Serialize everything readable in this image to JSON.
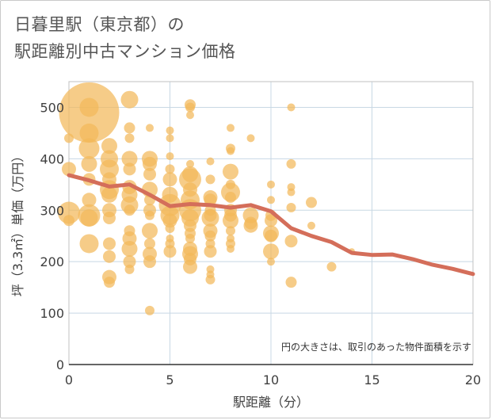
{
  "header": {
    "title_line1": "日暮里駅（東京都）の",
    "title_line2": "駅距離別中古マンション価格"
  },
  "colors": {
    "bubble": "#f2b85a",
    "trend": "#d46e5a",
    "grid": "#c8d8e4",
    "plot_border": "#c0c0c0",
    "axis_line": "#333333"
  },
  "chart_data": {
    "type": "scatter",
    "xlabel": "駅距離（分）",
    "ylabel": "坪（3.3㎡）単価（万円）",
    "annotation": "円の大きさは、取引のあった物件面積を示す",
    "xlim": [
      0,
      20
    ],
    "ylim": [
      0,
      550
    ],
    "xticks": [
      0,
      5,
      10,
      15,
      20
    ],
    "yticks": [
      0,
      100,
      200,
      300,
      400,
      500
    ],
    "grid": true,
    "series": [
      {
        "kind": "bubbles",
        "points": [
          [
            1,
            490,
            38
          ],
          [
            0,
            295,
            14
          ],
          [
            0,
            380,
            9
          ],
          [
            0,
            280,
            7
          ],
          [
            0,
            440,
            6
          ],
          [
            1,
            500,
            12
          ],
          [
            1,
            450,
            12
          ],
          [
            1,
            420,
            13
          ],
          [
            1,
            390,
            10
          ],
          [
            1,
            360,
            8
          ],
          [
            1,
            320,
            9
          ],
          [
            1,
            290,
            14
          ],
          [
            1,
            285,
            11
          ],
          [
            1,
            235,
            12
          ],
          [
            2,
            425,
            10
          ],
          [
            2,
            400,
            11
          ],
          [
            2,
            380,
            12
          ],
          [
            2,
            360,
            9
          ],
          [
            2,
            340,
            12
          ],
          [
            2,
            330,
            10
          ],
          [
            2,
            300,
            9
          ],
          [
            2,
            285,
            8
          ],
          [
            2,
            235,
            8
          ],
          [
            2,
            210,
            8
          ],
          [
            2,
            170,
            9
          ],
          [
            2,
            160,
            7
          ],
          [
            3,
            515,
            11
          ],
          [
            3,
            460,
            7
          ],
          [
            3,
            440,
            6
          ],
          [
            3,
            400,
            10
          ],
          [
            3,
            380,
            8
          ],
          [
            3,
            345,
            9
          ],
          [
            3,
            330,
            10
          ],
          [
            3,
            310,
            11
          ],
          [
            3,
            300,
            7
          ],
          [
            3,
            260,
            7
          ],
          [
            3,
            245,
            9
          ],
          [
            3,
            225,
            10
          ],
          [
            3,
            200,
            8
          ],
          [
            3,
            185,
            6
          ],
          [
            4,
            460,
            5
          ],
          [
            4,
            400,
            10
          ],
          [
            4,
            390,
            9
          ],
          [
            4,
            370,
            8
          ],
          [
            4,
            340,
            10
          ],
          [
            4,
            320,
            7
          ],
          [
            4,
            300,
            8
          ],
          [
            4,
            290,
            6
          ],
          [
            4,
            260,
            10
          ],
          [
            4,
            235,
            7
          ],
          [
            4,
            215,
            9
          ],
          [
            4,
            200,
            8
          ],
          [
            4,
            105,
            6
          ],
          [
            5,
            455,
            5
          ],
          [
            5,
            440,
            5
          ],
          [
            5,
            405,
            5
          ],
          [
            5,
            380,
            6
          ],
          [
            5,
            360,
            9
          ],
          [
            5,
            330,
            10
          ],
          [
            5,
            310,
            14
          ],
          [
            5,
            290,
            12
          ],
          [
            5,
            280,
            9
          ],
          [
            5,
            265,
            6
          ],
          [
            5,
            245,
            5
          ],
          [
            5,
            235,
            6
          ],
          [
            5,
            220,
            8
          ],
          [
            6,
            505,
            7
          ],
          [
            6,
            500,
            6
          ],
          [
            6,
            485,
            5
          ],
          [
            6,
            390,
            5
          ],
          [
            6,
            370,
            10
          ],
          [
            6,
            360,
            14
          ],
          [
            6,
            340,
            9
          ],
          [
            6,
            320,
            12
          ],
          [
            6,
            300,
            14
          ],
          [
            6,
            285,
            11
          ],
          [
            6,
            270,
            8
          ],
          [
            6,
            255,
            7
          ],
          [
            6,
            245,
            6
          ],
          [
            6,
            225,
            9
          ],
          [
            6,
            215,
            10
          ],
          [
            6,
            205,
            8
          ],
          [
            6,
            190,
            9
          ],
          [
            7,
            395,
            5
          ],
          [
            7,
            360,
            6
          ],
          [
            7,
            325,
            9
          ],
          [
            7,
            320,
            8
          ],
          [
            7,
            300,
            7
          ],
          [
            7,
            290,
            8
          ],
          [
            7,
            285,
            11
          ],
          [
            7,
            260,
            9
          ],
          [
            7,
            250,
            7
          ],
          [
            7,
            235,
            6
          ],
          [
            7,
            220,
            8
          ],
          [
            7,
            185,
            5
          ],
          [
            7,
            175,
            5
          ],
          [
            7,
            165,
            6
          ],
          [
            8,
            460,
            5
          ],
          [
            8,
            420,
            6
          ],
          [
            8,
            415,
            5
          ],
          [
            8,
            375,
            10
          ],
          [
            8,
            350,
            6
          ],
          [
            8,
            335,
            12
          ],
          [
            8,
            325,
            7
          ],
          [
            8,
            300,
            8
          ],
          [
            8,
            290,
            8
          ],
          [
            8,
            280,
            10
          ],
          [
            8,
            260,
            6
          ],
          [
            8,
            245,
            5
          ],
          [
            8,
            235,
            6
          ],
          [
            8,
            225,
            5
          ],
          [
            9,
            440,
            5
          ],
          [
            9,
            290,
            10
          ],
          [
            9,
            275,
            8
          ],
          [
            9,
            270,
            9
          ],
          [
            10,
            350,
            5
          ],
          [
            10,
            320,
            5
          ],
          [
            10,
            290,
            7
          ],
          [
            10,
            280,
            8
          ],
          [
            10,
            255,
            10
          ],
          [
            10,
            250,
            8
          ],
          [
            10,
            220,
            10
          ],
          [
            10,
            200,
            5
          ],
          [
            11,
            500,
            5
          ],
          [
            11,
            390,
            6
          ],
          [
            11,
            345,
            5
          ],
          [
            11,
            335,
            5
          ],
          [
            11,
            305,
            6
          ],
          [
            11,
            240,
            8
          ],
          [
            11,
            160,
            7
          ],
          [
            12,
            315,
            7
          ],
          [
            12,
            270,
            5
          ],
          [
            13,
            190,
            6
          ],
          [
            14,
            220,
            4
          ]
        ]
      },
      {
        "kind": "line",
        "x": [
          0,
          1,
          2,
          3,
          4,
          5,
          6,
          7,
          8,
          9,
          10,
          11,
          12,
          13,
          14,
          15,
          16,
          17,
          18,
          19,
          20
        ],
        "y": [
          368,
          358,
          346,
          350,
          330,
          308,
          312,
          310,
          305,
          310,
          298,
          265,
          250,
          238,
          217,
          213,
          214,
          205,
          194,
          186,
          176
        ]
      }
    ]
  }
}
